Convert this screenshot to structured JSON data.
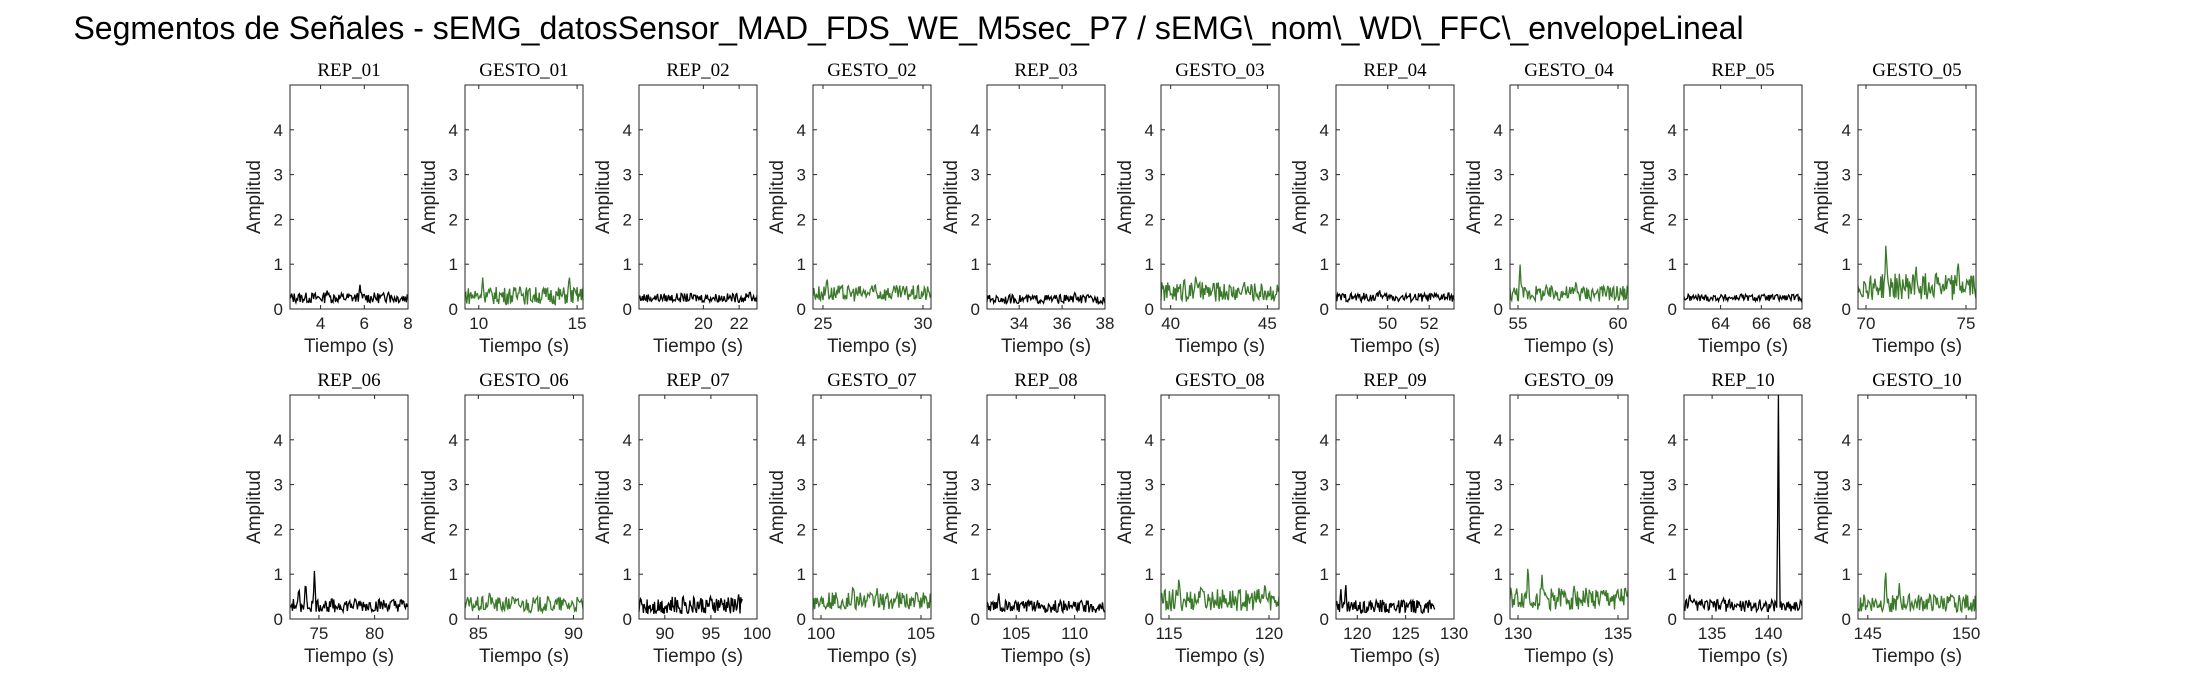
{
  "figure": {
    "title": "Segmentos de Señales - sEMG_datosSensor_MAD_FDS_WE_M5sec_P7 / sEMG\\_nom\\_WD\\_FFC\\_envelopeLineal"
  },
  "colors": {
    "rep": "#000000",
    "gesto": "#3a7a2a",
    "axis": "#262626"
  },
  "chart_data": [
    {
      "type": "line",
      "title": "REP_01",
      "xlabel": "Tiempo (s)",
      "ylabel": "Amplitud",
      "xlim": [
        2.6,
        8
      ],
      "ylim": [
        0,
        5
      ],
      "yticks": [
        0,
        1,
        2,
        3,
        4
      ],
      "xticks": [
        4,
        6,
        8
      ],
      "color": "rep",
      "series": [
        {
          "x": [
            2.6,
            8.0
          ],
          "baseline": 0.25,
          "peaks": [
            [
              5.8,
              0.55
            ],
            [
              4.3,
              0.42
            ],
            [
              7.1,
              0.4
            ]
          ],
          "noise": 0.12
        }
      ]
    },
    {
      "type": "line",
      "title": "GESTO_01",
      "xlabel": "Tiempo (s)",
      "ylabel": "Amplitud",
      "xlim": [
        9.3,
        15.3
      ],
      "ylim": [
        0,
        5
      ],
      "yticks": [
        0,
        1,
        2,
        3,
        4
      ],
      "xticks": [
        10,
        15
      ],
      "color": "gesto",
      "series": [
        {
          "x": [
            9.3,
            15.3
          ],
          "baseline": 0.3,
          "peaks": [
            [
              14.6,
              0.8
            ],
            [
              10.2,
              0.7
            ],
            [
              12.1,
              0.55
            ]
          ],
          "noise": 0.2
        }
      ]
    },
    {
      "type": "line",
      "title": "REP_02",
      "xlabel": "Tiempo (s)",
      "ylabel": "Amplitud",
      "xlim": [
        16.4,
        23
      ],
      "ylim": [
        0,
        5
      ],
      "yticks": [
        0,
        1,
        2,
        3,
        4
      ],
      "xticks": [
        20,
        22
      ],
      "color": "rep",
      "series": [
        {
          "x": [
            16.4,
            23.0
          ],
          "baseline": 0.25,
          "peaks": [
            [
              22.6,
              0.42
            ]
          ],
          "noise": 0.1
        }
      ]
    },
    {
      "type": "line",
      "title": "GESTO_02",
      "xlabel": "Tiempo (s)",
      "ylabel": "Amplitud",
      "xlim": [
        24.5,
        30.4
      ],
      "ylim": [
        0,
        5
      ],
      "yticks": [
        0,
        1,
        2,
        3,
        4
      ],
      "xticks": [
        25,
        30
      ],
      "color": "gesto",
      "series": [
        {
          "x": [
            24.5,
            30.4
          ],
          "baseline": 0.35,
          "peaks": [
            [
              25.2,
              0.75
            ],
            [
              27.6,
              0.6
            ]
          ],
          "noise": 0.18
        }
      ]
    },
    {
      "type": "line",
      "title": "REP_03",
      "xlabel": "Tiempo (s)",
      "ylabel": "Amplitud",
      "xlim": [
        32.5,
        38
      ],
      "ylim": [
        0,
        5
      ],
      "yticks": [
        0,
        1,
        2,
        3,
        4
      ],
      "xticks": [
        34,
        36,
        38
      ],
      "color": "rep",
      "series": [
        {
          "x": [
            32.5,
            38.0
          ],
          "baseline": 0.22,
          "peaks": [
            [
              36.6,
              0.4
            ]
          ],
          "noise": 0.1
        }
      ]
    },
    {
      "type": "line",
      "title": "GESTO_03",
      "xlabel": "Tiempo (s)",
      "ylabel": "Amplitud",
      "xlim": [
        39.5,
        45.6
      ],
      "ylim": [
        0,
        5
      ],
      "yticks": [
        0,
        1,
        2,
        3,
        4
      ],
      "xticks": [
        40,
        45
      ],
      "color": "gesto",
      "series": [
        {
          "x": [
            39.5,
            45.6
          ],
          "baseline": 0.38,
          "peaks": [
            [
              41.3,
              0.8
            ],
            [
              40.7,
              0.75
            ],
            [
              43.8,
              0.65
            ]
          ],
          "noise": 0.22
        }
      ]
    },
    {
      "type": "line",
      "title": "REP_04",
      "xlabel": "Tiempo (s)",
      "ylabel": "Amplitud",
      "xlim": [
        47.5,
        53.2
      ],
      "ylim": [
        0,
        5
      ],
      "yticks": [
        0,
        1,
        2,
        3,
        4
      ],
      "xticks": [
        50,
        52
      ],
      "color": "rep",
      "series": [
        {
          "x": [
            47.5,
            53.2
          ],
          "baseline": 0.26,
          "peaks": [
            [
              49.6,
              0.45
            ]
          ],
          "noise": 0.1
        }
      ]
    },
    {
      "type": "line",
      "title": "GESTO_04",
      "xlabel": "Tiempo (s)",
      "ylabel": "Amplitud",
      "xlim": [
        54.6,
        60.5
      ],
      "ylim": [
        0,
        5
      ],
      "yticks": [
        0,
        1,
        2,
        3,
        4
      ],
      "xticks": [
        55,
        60
      ],
      "color": "gesto",
      "series": [
        {
          "x": [
            54.6,
            60.5
          ],
          "baseline": 0.35,
          "peaks": [
            [
              55.1,
              1.05
            ],
            [
              57.9,
              0.65
            ],
            [
              59.5,
              0.55
            ]
          ],
          "noise": 0.18
        }
      ]
    },
    {
      "type": "line",
      "title": "REP_05",
      "xlabel": "Tiempo (s)",
      "ylabel": "Amplitud",
      "xlim": [
        62.2,
        68
      ],
      "ylim": [
        0,
        5
      ],
      "yticks": [
        0,
        1,
        2,
        3,
        4
      ],
      "xticks": [
        64,
        66,
        68
      ],
      "color": "rep",
      "series": [
        {
          "x": [
            62.2,
            68.0
          ],
          "baseline": 0.25,
          "peaks": [
            [
              65.0,
              0.36
            ]
          ],
          "noise": 0.08
        }
      ]
    },
    {
      "type": "line",
      "title": "GESTO_05",
      "xlabel": "Tiempo (s)",
      "ylabel": "Amplitud",
      "xlim": [
        69.6,
        75.5
      ],
      "ylim": [
        0,
        5
      ],
      "yticks": [
        0,
        1,
        2,
        3,
        4
      ],
      "xticks": [
        70,
        75
      ],
      "color": "gesto",
      "series": [
        {
          "x": [
            69.6,
            75.5
          ],
          "baseline": 0.5,
          "peaks": [
            [
              71.0,
              1.55
            ],
            [
              74.6,
              1.15
            ],
            [
              72.5,
              1.0
            ],
            [
              73.5,
              0.9
            ]
          ],
          "noise": 0.3
        }
      ]
    },
    {
      "type": "line",
      "title": "REP_06",
      "xlabel": "Tiempo (s)",
      "ylabel": "Amplitud",
      "xlim": [
        72.4,
        83
      ],
      "ylim": [
        0,
        5
      ],
      "yticks": [
        0,
        1,
        2,
        3,
        4
      ],
      "xticks": [
        75,
        80
      ],
      "color": "rep",
      "series": [
        {
          "x": [
            72.4,
            83.0
          ],
          "baseline": 0.3,
          "peaks": [
            [
              74.6,
              1.1
            ],
            [
              73.8,
              0.9
            ],
            [
              73.2,
              0.75
            ]
          ],
          "noise": 0.15
        }
      ]
    },
    {
      "type": "line",
      "title": "GESTO_06",
      "xlabel": "Tiempo (s)",
      "ylabel": "Amplitud",
      "xlim": [
        84.3,
        90.5
      ],
      "ylim": [
        0,
        5
      ],
      "yticks": [
        0,
        1,
        2,
        3,
        4
      ],
      "xticks": [
        85,
        90
      ],
      "color": "gesto",
      "series": [
        {
          "x": [
            84.3,
            90.5
          ],
          "baseline": 0.32,
          "peaks": [
            [
              85.6,
              0.65
            ],
            [
              86.8,
              0.55
            ]
          ],
          "noise": 0.18
        }
      ]
    },
    {
      "type": "line",
      "title": "REP_07",
      "xlabel": "Tiempo (s)",
      "ylabel": "Amplitud",
      "xlim": [
        87.2,
        100
      ],
      "ylim": [
        0,
        5
      ],
      "yticks": [
        0,
        1,
        2,
        3,
        4
      ],
      "xticks": [
        90,
        95,
        100
      ],
      "color": "rep",
      "series": [
        {
          "x": [
            87.2,
            98.4
          ],
          "baseline": 0.3,
          "peaks": [
            [
              98.0,
              0.55
            ],
            [
              92.0,
              0.5
            ]
          ],
          "noise": 0.2
        }
      ]
    },
    {
      "type": "line",
      "title": "GESTO_07",
      "xlabel": "Tiempo (s)",
      "ylabel": "Amplitud",
      "xlim": [
        99.6,
        105.5
      ],
      "ylim": [
        0,
        5
      ],
      "yticks": [
        0,
        1,
        2,
        3,
        4
      ],
      "xticks": [
        100,
        105
      ],
      "color": "gesto",
      "series": [
        {
          "x": [
            99.6,
            105.5
          ],
          "baseline": 0.4,
          "peaks": [
            [
              101.6,
              0.8
            ],
            [
              102.8,
              0.7
            ]
          ],
          "noise": 0.2
        }
      ]
    },
    {
      "type": "line",
      "title": "REP_08",
      "xlabel": "Tiempo (s)",
      "ylabel": "Amplitud",
      "xlim": [
        102.5,
        112.6
      ],
      "ylim": [
        0,
        5
      ],
      "yticks": [
        0,
        1,
        2,
        3,
        4
      ],
      "xticks": [
        105,
        110
      ],
      "color": "rep",
      "series": [
        {
          "x": [
            102.5,
            112.6
          ],
          "baseline": 0.28,
          "peaks": [
            [
              103.5,
              0.6
            ],
            [
              110.6,
              0.42
            ]
          ],
          "noise": 0.14
        }
      ]
    },
    {
      "type": "line",
      "title": "GESTO_08",
      "xlabel": "Tiempo (s)",
      "ylabel": "Amplitud",
      "xlim": [
        114.6,
        120.5
      ],
      "ylim": [
        0,
        5
      ],
      "yticks": [
        0,
        1,
        2,
        3,
        4
      ],
      "xticks": [
        115,
        120
      ],
      "color": "gesto",
      "series": [
        {
          "x": [
            114.6,
            120.5
          ],
          "baseline": 0.42,
          "peaks": [
            [
              115.5,
              1.0
            ],
            [
              119.8,
              0.85
            ],
            [
              116.6,
              0.8
            ]
          ],
          "noise": 0.25
        }
      ]
    },
    {
      "type": "line",
      "title": "REP_09",
      "xlabel": "Tiempo (s)",
      "ylabel": "Amplitud",
      "xlim": [
        117.8,
        130
      ],
      "ylim": [
        0,
        5
      ],
      "yticks": [
        0,
        1,
        2,
        3,
        4
      ],
      "xticks": [
        120,
        125,
        130
      ],
      "color": "rep",
      "series": [
        {
          "x": [
            117.8,
            128.0
          ],
          "baseline": 0.28,
          "peaks": [
            [
              118.8,
              0.85
            ],
            [
              118.3,
              0.7
            ]
          ],
          "noise": 0.15
        }
      ]
    },
    {
      "type": "line",
      "title": "GESTO_09",
      "xlabel": "Tiempo (s)",
      "ylabel": "Amplitud",
      "xlim": [
        129.6,
        135.5
      ],
      "ylim": [
        0,
        5
      ],
      "yticks": [
        0,
        1,
        2,
        3,
        4
      ],
      "xticks": [
        130,
        135
      ],
      "color": "gesto",
      "series": [
        {
          "x": [
            129.6,
            135.5
          ],
          "baseline": 0.45,
          "peaks": [
            [
              130.5,
              1.3
            ],
            [
              131.2,
              1.0
            ],
            [
              132.8,
              0.75
            ]
          ],
          "noise": 0.25
        }
      ]
    },
    {
      "type": "line",
      "title": "REP_10",
      "xlabel": "Tiempo (s)",
      "ylabel": "Amplitud",
      "xlim": [
        132.5,
        143
      ],
      "ylim": [
        0,
        5
      ],
      "yticks": [
        0,
        1,
        2,
        3,
        4
      ],
      "xticks": [
        135,
        140
      ],
      "color": "rep",
      "series": [
        {
          "x": [
            132.5,
            143.0
          ],
          "baseline": 0.3,
          "peaks": [
            [
              140.9,
              5.0
            ],
            [
              133.0,
              0.6
            ],
            [
              136.0,
              0.5
            ]
          ],
          "noise": 0.14
        }
      ]
    },
    {
      "type": "line",
      "title": "GESTO_10",
      "xlabel": "Tiempo (s)",
      "ylabel": "Amplitud",
      "xlim": [
        144.5,
        150.5
      ],
      "ylim": [
        0,
        5
      ],
      "yticks": [
        0,
        1,
        2,
        3,
        4
      ],
      "xticks": [
        145,
        150
      ],
      "color": "gesto",
      "series": [
        {
          "x": [
            144.5,
            150.5
          ],
          "baseline": 0.35,
          "peaks": [
            [
              145.9,
              1.2
            ],
            [
              146.6,
              0.8
            ]
          ],
          "noise": 0.2
        }
      ]
    }
  ]
}
